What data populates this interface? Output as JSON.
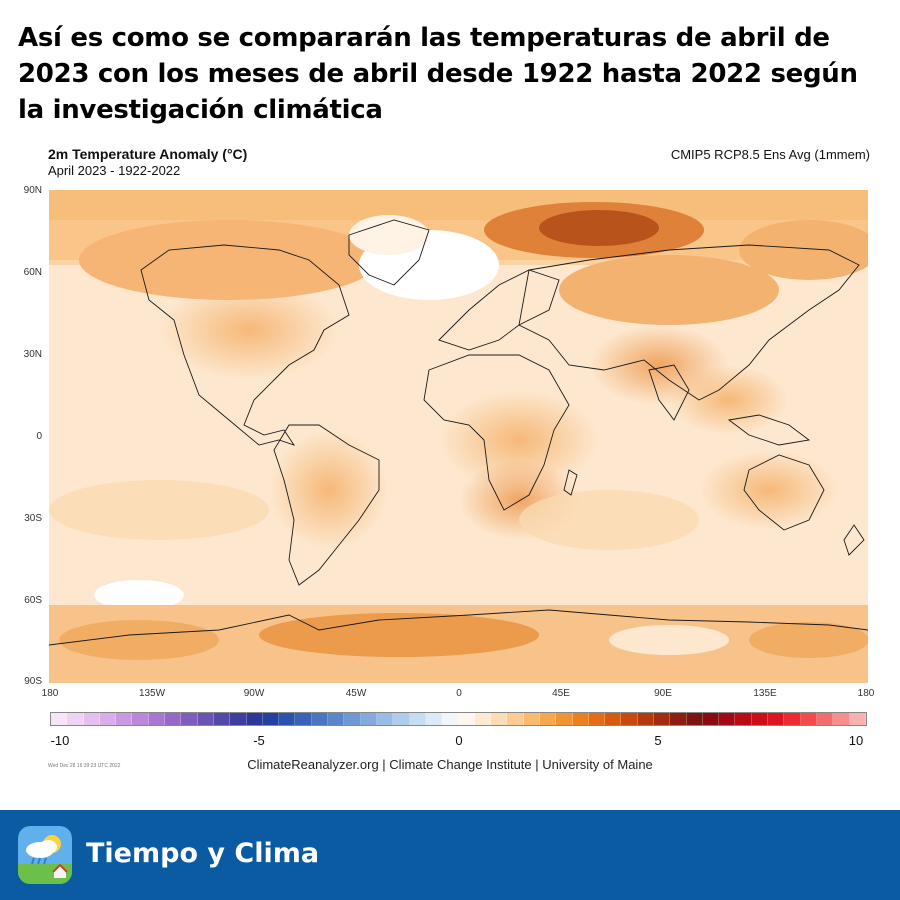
{
  "headline": "Así es como se compararán las temperaturas de abril de 2023 con los meses de abril desde 1922 hasta 2022 según la investigación climática",
  "map": {
    "title": "2m Temperature Anomaly (°C)",
    "subtitle": "April 2023 - 1922-2022",
    "model": "CMIP5 RCP8.5 Ens Avg (1mmem)",
    "lat_labels": [
      "90N",
      "60N",
      "30N",
      "0",
      "30S",
      "60S",
      "90S"
    ],
    "lon_labels": [
      "180",
      "135W",
      "90W",
      "45W",
      "0",
      "45E",
      "90E",
      "135E",
      "180"
    ],
    "colorbar": {
      "labels": [
        "-10",
        "-5",
        "0",
        "5",
        "10"
      ],
      "colors": [
        "#f7e4f7",
        "#efd3f3",
        "#e5c0ef",
        "#d9aceb",
        "#cb98e4",
        "#bb86dc",
        "#a977d2",
        "#9569c7",
        "#7f5dbd",
        "#6a54b3",
        "#5449a8",
        "#3f3ea0",
        "#2c3799",
        "#22409f",
        "#2b52ac",
        "#3a63b7",
        "#4a75c1",
        "#5c86ca",
        "#6f98d4",
        "#84aadd",
        "#99bce5",
        "#afccec",
        "#c6dcf2",
        "#dceaf8",
        "#f0f6fc",
        "#fff7ee",
        "#ffe9d2",
        "#fedbb4",
        "#fccb92",
        "#f9b96e",
        "#f6a74e",
        "#f29333",
        "#ec801f",
        "#e46c14",
        "#d85a0f",
        "#c9490e",
        "#b6380e",
        "#a12a0f",
        "#8c1f10",
        "#7a1510",
        "#8a0c12",
        "#a00a14",
        "#b80a17",
        "#cc0d1a",
        "#de1420",
        "#ec2a30",
        "#f34a4a",
        "#f56c6c",
        "#f68e8e",
        "#f8b1b1"
      ]
    }
  },
  "credit_tiny": "Wed Dec 28 16:39:23 UTC 2022",
  "credit": "ClimateReanalyzer.org | Climate Change Institute | University of Maine",
  "footer": {
    "brand": "Tiempo y Clima",
    "icon": "weather-app-icon",
    "bg_color": "#0b5ba3"
  }
}
